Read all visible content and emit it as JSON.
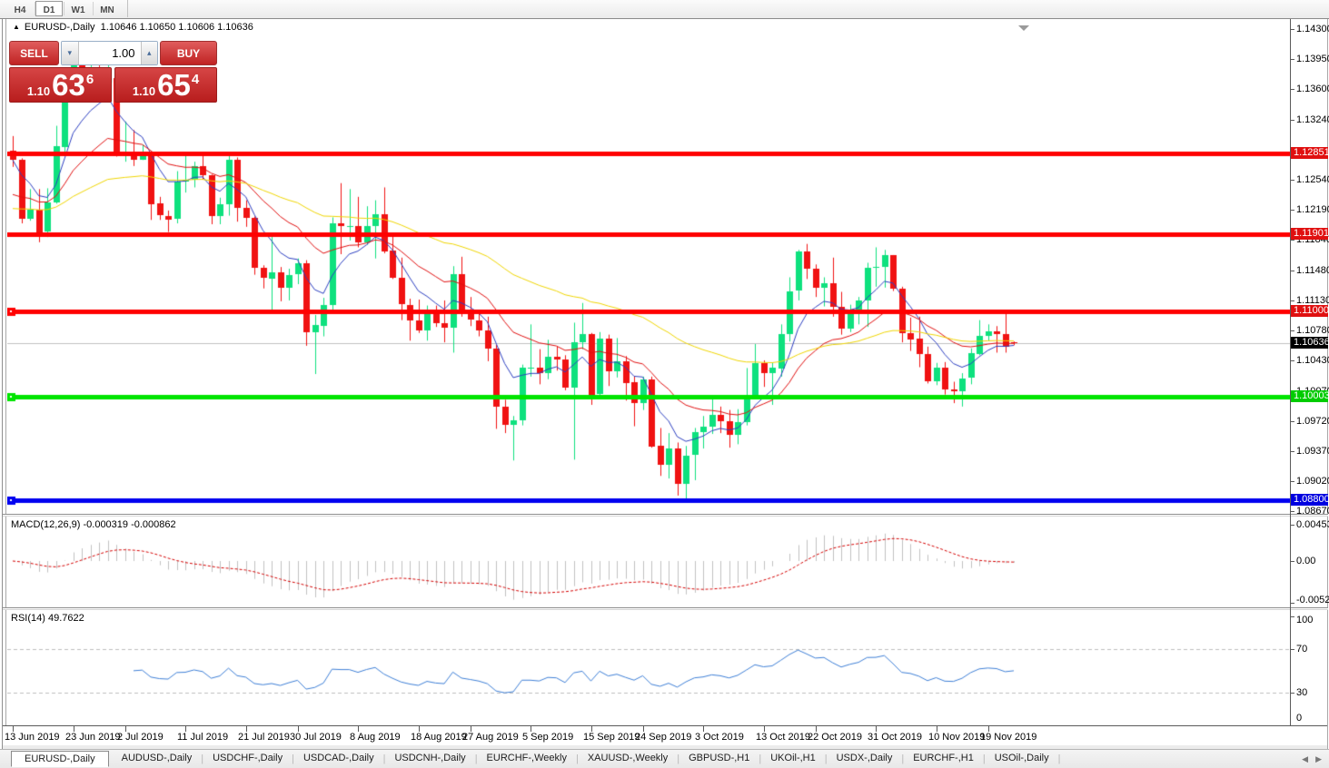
{
  "toolbar": {
    "buttons": [
      {
        "label": "H4",
        "active": false
      },
      {
        "label": "D1",
        "active": true
      },
      {
        "label": "W1",
        "active": false
      },
      {
        "label": "MN",
        "active": false
      }
    ]
  },
  "chart_header": {
    "symbol_title": "EURUSD-,Daily",
    "ohlc_text": "1.10646 1.10650 1.10606 1.10636"
  },
  "trade_panel": {
    "sell_label": "SELL",
    "buy_label": "BUY",
    "volume": "1.00",
    "sell_price": {
      "big": "1.10",
      "pips": "63",
      "pipette": "6"
    },
    "buy_price": {
      "big": "1.10",
      "pips": "65",
      "pipette": "4"
    }
  },
  "colors": {
    "candle_up": "#0EE17E",
    "candle_down": "#F01212",
    "ma_fast_blue": "#2C3FC0",
    "ma_mid_red": "#E01010",
    "ma_slow_yellow": "#EFD500",
    "level_red": "#FF0000",
    "level_green": "#00E400",
    "level_blue": "#0000F0",
    "current_price_line": "#C0C0C0",
    "macd_histogram": "#C0C0C0",
    "macd_signal": "#D40000",
    "rsi_line": "#3E7FD6",
    "badge_red": "#E01010",
    "badge_black": "#000000",
    "badge_green": "#00CC00",
    "badge_blue": "#0000E0"
  },
  "chart_data": {
    "type": "candlestick",
    "symbol": "EURUSD-",
    "timeframe": "Daily",
    "current_price": 1.10636,
    "y_axis_ticks": [
      "1.14300",
      "1.13950",
      "1.13600",
      "1.13240",
      "1.12540",
      "1.12190",
      "1.11840",
      "1.11480",
      "1.11130",
      "1.10780",
      "1.10430",
      "1.10070",
      "1.09720",
      "1.09370",
      "1.09020",
      "1.08670"
    ],
    "axis_badges": [
      {
        "text": "1.12851",
        "value": 1.12851,
        "color": "#E01010"
      },
      {
        "text": "1.11901",
        "value": 1.11901,
        "color": "#E01010"
      },
      {
        "text": "1.11000",
        "value": 1.11,
        "color": "#E01010"
      },
      {
        "text": "1.10636",
        "value": 1.10636,
        "color": "#000000"
      },
      {
        "text": "1.10003",
        "value": 1.10003,
        "color": "#00CC00"
      },
      {
        "text": "1.08800",
        "value": 1.088,
        "color": "#0000E0"
      }
    ],
    "price_levels": [
      {
        "value": 1.12851,
        "color": "#FF0000",
        "width": 5,
        "handle": false
      },
      {
        "value": 1.11901,
        "color": "#FF0000",
        "width": 5,
        "handle": false
      },
      {
        "value": 1.11,
        "color": "#FF0000",
        "width": 5,
        "handle": true
      },
      {
        "value": 1.10003,
        "color": "#00E400",
        "width": 5,
        "handle": true
      },
      {
        "value": 1.088,
        "color": "#0000F0",
        "width": 5,
        "handle": true
      }
    ],
    "x_labels": [
      {
        "label": "13 Jun 2019",
        "bar": 0
      },
      {
        "label": "23 Jun 2019",
        "bar": 7
      },
      {
        "label": "2 Jul 2019",
        "bar": 13
      },
      {
        "label": "11 Jul 2019",
        "bar": 20
      },
      {
        "label": "21 Jul 2019",
        "bar": 27
      },
      {
        "label": "30 Jul 2019",
        "bar": 33
      },
      {
        "label": "8 Aug 2019",
        "bar": 40
      },
      {
        "label": "18 Aug 2019",
        "bar": 47
      },
      {
        "label": "27 Aug 2019",
        "bar": 53
      },
      {
        "label": "5 Sep 2019",
        "bar": 60
      },
      {
        "label": "15 Sep 2019",
        "bar": 67
      },
      {
        "label": "24 Sep 2019",
        "bar": 73
      },
      {
        "label": "3 Oct 2019",
        "bar": 80
      },
      {
        "label": "13 Oct 2019",
        "bar": 87
      },
      {
        "label": "22 Oct 2019",
        "bar": 93
      },
      {
        "label": "31 Oct 2019",
        "bar": 100
      },
      {
        "label": "10 Nov 2019",
        "bar": 107
      },
      {
        "label": "19 Nov 2019",
        "bar": 113
      }
    ],
    "candles_ohlc": [
      [
        1.1288,
        1.1305,
        1.1269,
        1.1277
      ],
      [
        1.1277,
        1.1279,
        1.1203,
        1.1208
      ],
      [
        1.1208,
        1.1243,
        1.1206,
        1.1219
      ],
      [
        1.1219,
        1.1243,
        1.1181,
        1.1193
      ],
      [
        1.1193,
        1.1244,
        1.1187,
        1.1227
      ],
      [
        1.1227,
        1.1317,
        1.1226,
        1.1293
      ],
      [
        1.1293,
        1.1378,
        1.1285,
        1.1369
      ],
      [
        1.1369,
        1.1403,
        1.1365,
        1.1399
      ],
      [
        1.1399,
        1.1412,
        1.1355,
        1.1365
      ],
      [
        1.1365,
        1.14,
        1.135,
        1.137
      ],
      [
        1.137,
        1.1391,
        1.1362,
        1.1368
      ],
      [
        1.1368,
        1.1393,
        1.1351,
        1.1373
      ],
      [
        1.1373,
        1.1374,
        1.1281,
        1.1285
      ],
      [
        1.1285,
        1.1322,
        1.1275,
        1.1285
      ],
      [
        1.1285,
        1.1312,
        1.127,
        1.1278
      ],
      [
        1.1278,
        1.1295,
        1.1277,
        1.1283
      ],
      [
        1.1283,
        1.1287,
        1.1207,
        1.1226
      ],
      [
        1.1226,
        1.1234,
        1.1207,
        1.1212
      ],
      [
        1.1212,
        1.1218,
        1.1193,
        1.1208
      ],
      [
        1.1208,
        1.1264,
        1.1203,
        1.1252
      ],
      [
        1.1252,
        1.1286,
        1.1239,
        1.1254
      ],
      [
        1.1254,
        1.1275,
        1.1245,
        1.127
      ],
      [
        1.127,
        1.1284,
        1.1254,
        1.1259
      ],
      [
        1.1259,
        1.126,
        1.1202,
        1.1211
      ],
      [
        1.1211,
        1.1233,
        1.1202,
        1.1225
      ],
      [
        1.1225,
        1.1285,
        1.1212,
        1.1277
      ],
      [
        1.1277,
        1.128,
        1.1205,
        1.1221
      ],
      [
        1.1221,
        1.123,
        1.1199,
        1.1209
      ],
      [
        1.1209,
        1.1211,
        1.1143,
        1.1151
      ],
      [
        1.1151,
        1.1154,
        1.1127,
        1.1139
      ],
      [
        1.1139,
        1.1187,
        1.1101,
        1.1146
      ],
      [
        1.1146,
        1.1152,
        1.1112,
        1.1128
      ],
      [
        1.1128,
        1.115,
        1.1113,
        1.1143
      ],
      [
        1.1143,
        1.1162,
        1.1132,
        1.1156
      ],
      [
        1.1156,
        1.116,
        1.106,
        1.1075
      ],
      [
        1.1075,
        1.1096,
        1.1027,
        1.1084
      ],
      [
        1.1084,
        1.1116,
        1.1071,
        1.1108
      ],
      [
        1.1108,
        1.121,
        1.1101,
        1.1203
      ],
      [
        1.1203,
        1.125,
        1.1167,
        1.12
      ],
      [
        1.12,
        1.1243,
        1.1183,
        1.12
      ],
      [
        1.12,
        1.1234,
        1.1175,
        1.1181
      ],
      [
        1.1181,
        1.1223,
        1.1178,
        1.12
      ],
      [
        1.12,
        1.123,
        1.1162,
        1.1214
      ],
      [
        1.1214,
        1.1245,
        1.1168,
        1.1171
      ],
      [
        1.1171,
        1.1192,
        1.1138,
        1.1139
      ],
      [
        1.1139,
        1.1163,
        1.109,
        1.1108
      ],
      [
        1.1108,
        1.1115,
        1.1066,
        1.109
      ],
      [
        1.109,
        1.1114,
        1.1075,
        1.1078
      ],
      [
        1.1078,
        1.1107,
        1.1066,
        1.1099
      ],
      [
        1.1099,
        1.1107,
        1.1082,
        1.1086
      ],
      [
        1.1086,
        1.1113,
        1.1064,
        1.1081
      ],
      [
        1.1081,
        1.1153,
        1.1052,
        1.1144
      ],
      [
        1.1144,
        1.1164,
        1.1094,
        1.1101
      ],
      [
        1.1101,
        1.1117,
        1.1083,
        1.109
      ],
      [
        1.109,
        1.1098,
        1.1071,
        1.1078
      ],
      [
        1.1078,
        1.1094,
        1.1042,
        1.1057
      ],
      [
        1.1057,
        1.1061,
        1.0963,
        1.0989
      ],
      [
        1.0989,
        1.0997,
        1.0958,
        1.0968
      ],
      [
        1.0968,
        1.0978,
        1.0926,
        1.0973
      ],
      [
        1.0973,
        1.1038,
        1.0967,
        1.1034
      ],
      [
        1.1034,
        1.1085,
        1.1024,
        1.1034
      ],
      [
        1.1034,
        1.1056,
        1.1015,
        1.1028
      ],
      [
        1.1028,
        1.1067,
        1.1021,
        1.1047
      ],
      [
        1.1047,
        1.1059,
        1.1031,
        1.1044
      ],
      [
        1.1044,
        1.1049,
        1.1008,
        1.1011
      ],
      [
        1.1011,
        1.1087,
        1.0927,
        1.1064
      ],
      [
        1.1064,
        1.111,
        1.1056,
        1.1074
      ],
      [
        1.1074,
        1.1075,
        1.0991,
        1.1003
      ],
      [
        1.1003,
        1.1076,
        1.0998,
        1.1068
      ],
      [
        1.1068,
        1.1073,
        1.1013,
        1.103
      ],
      [
        1.103,
        1.1069,
        1.1023,
        1.1042
      ],
      [
        1.1042,
        1.1048,
        1.0996,
        1.1017
      ],
      [
        1.1017,
        1.1024,
        1.0966,
        1.0993
      ],
      [
        1.0993,
        1.1024,
        1.0985,
        1.1021
      ],
      [
        1.1021,
        1.1024,
        1.0941,
        1.0943
      ],
      [
        1.0943,
        1.0964,
        1.0908,
        1.0921
      ],
      [
        1.0921,
        1.0958,
        1.0905,
        1.094
      ],
      [
        1.094,
        1.0947,
        1.0885,
        1.0899
      ],
      [
        1.0899,
        1.0943,
        1.0879,
        1.0932
      ],
      [
        1.0932,
        1.0964,
        1.0903,
        1.0959
      ],
      [
        1.0959,
        1.0978,
        1.094,
        1.0965
      ],
      [
        1.0965,
        1.0999,
        1.0957,
        1.0979
      ],
      [
        1.0979,
        1.0989,
        1.0958,
        1.0972
      ],
      [
        1.0972,
        1.0985,
        1.0941,
        1.0956
      ],
      [
        1.0956,
        1.0986,
        1.0945,
        1.0971
      ],
      [
        1.0971,
        1.1034,
        1.0967,
        1.1003
      ],
      [
        1.1003,
        1.1062,
        1.1002,
        1.104
      ],
      [
        1.104,
        1.1043,
        1.1012,
        1.1028
      ],
      [
        1.1028,
        1.104,
        1.0991,
        1.1034
      ],
      [
        1.1034,
        1.1085,
        1.1024,
        1.1074
      ],
      [
        1.1074,
        1.114,
        1.1065,
        1.1124
      ],
      [
        1.1124,
        1.1172,
        1.1113,
        1.117
      ],
      [
        1.117,
        1.1179,
        1.1138,
        1.115
      ],
      [
        1.115,
        1.1155,
        1.1117,
        1.1128
      ],
      [
        1.1128,
        1.114,
        1.1106,
        1.1133
      ],
      [
        1.1133,
        1.1163,
        1.1094,
        1.1105
      ],
      [
        1.1105,
        1.1123,
        1.1073,
        1.108
      ],
      [
        1.108,
        1.1108,
        1.1076,
        1.1099
      ],
      [
        1.1099,
        1.1117,
        1.1085,
        1.1113
      ],
      [
        1.1113,
        1.1157,
        1.1082,
        1.1151
      ],
      [
        1.1151,
        1.1175,
        1.1129,
        1.1152
      ],
      [
        1.1152,
        1.1172,
        1.1128,
        1.1166
      ],
      [
        1.1166,
        1.1166,
        1.1124,
        1.1127
      ],
      [
        1.1127,
        1.1129,
        1.1064,
        1.1075
      ],
      [
        1.1075,
        1.1093,
        1.1054,
        1.1068
      ],
      [
        1.1068,
        1.1094,
        1.1035,
        1.105
      ],
      [
        1.105,
        1.1059,
        1.1016,
        1.1018
      ],
      [
        1.1018,
        1.104,
        1.1014,
        1.1034
      ],
      [
        1.1034,
        1.1041,
        1.1003,
        1.1009
      ],
      [
        1.1009,
        1.1018,
        1.0993,
        1.1007
      ],
      [
        1.1007,
        1.1028,
        1.0989,
        1.1022
      ],
      [
        1.1022,
        1.1057,
        1.1015,
        1.1051
      ],
      [
        1.1051,
        1.109,
        1.1049,
        1.1072
      ],
      [
        1.1072,
        1.1085,
        1.1066,
        1.1077
      ],
      [
        1.1077,
        1.1083,
        1.1052,
        1.1074
      ],
      [
        1.1074,
        1.1097,
        1.1052,
        1.1059
      ],
      [
        1.10646,
        1.1065,
        1.10606,
        1.10636
      ]
    ],
    "moving_averages": [
      {
        "name": "fast",
        "type": "ema",
        "period": 7,
        "color": "#2C3FC0",
        "seed": null
      },
      {
        "name": "mid",
        "type": "ema",
        "period": 18,
        "color": "#E01010",
        "seed": 1.1232
      },
      {
        "name": "slow",
        "type": "ema",
        "period": 50,
        "color": "#EFD500",
        "seed": 1.1218
      }
    ],
    "macd": {
      "label": "MACD(12,26,9)",
      "values_text": "-0.000319 -0.000862",
      "fast": 12,
      "slow": 26,
      "signal": 9,
      "axis_labels": [
        "0.004536",
        "0.00",
        "-0.005205"
      ],
      "axis_values": [
        0.004536,
        0,
        -0.005205
      ]
    },
    "rsi": {
      "label": "RSI(14)",
      "value_text": "49.7622",
      "period": 14,
      "axis_labels": [
        "100",
        "70",
        "30",
        "0"
      ],
      "axis_values": [
        100,
        70,
        30,
        0
      ],
      "levels": [
        70,
        30
      ]
    }
  },
  "tabs": {
    "items": [
      {
        "label": "EURUSD-,Daily",
        "active": true
      },
      {
        "label": "AUDUSD-,Daily",
        "active": false
      },
      {
        "label": "USDCHF-,Daily",
        "active": false
      },
      {
        "label": "USDCAD-,Daily",
        "active": false
      },
      {
        "label": "USDCNH-,Daily",
        "active": false
      },
      {
        "label": "EURCHF-,Weekly",
        "active": false
      },
      {
        "label": "XAUUSD-,Weekly",
        "active": false
      },
      {
        "label": "GBPUSD-,H1",
        "active": false
      },
      {
        "label": "UKOil-,H1",
        "active": false
      },
      {
        "label": "USDX-,Daily",
        "active": false
      },
      {
        "label": "EURCHF-,H1",
        "active": false
      },
      {
        "label": "USOil-,Daily",
        "active": false
      }
    ]
  }
}
